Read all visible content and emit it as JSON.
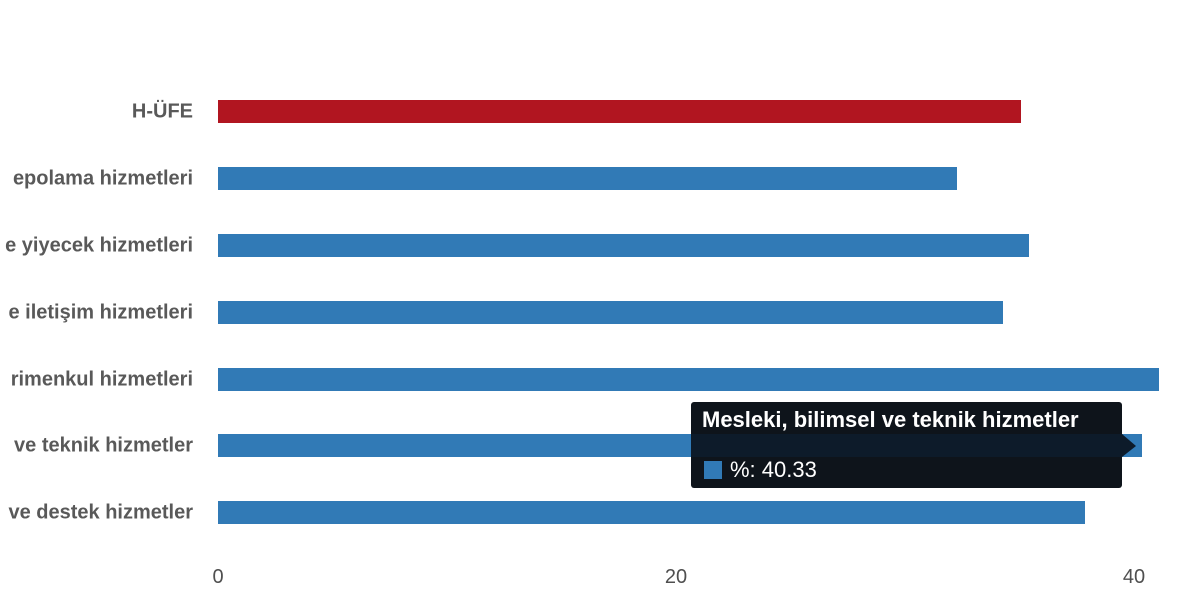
{
  "colors": {
    "background": "#ffffff",
    "bar_blue": "#317ab6",
    "bar_red": "#b11520",
    "category_label_gray": "#595959",
    "axis_label_gray": "#4f4f4f",
    "tooltip_background": "#0a0f16",
    "tooltip_bar_strip": "#0d1b2a",
    "tooltip_text": "#ffffff"
  },
  "chart_data": {
    "type": "bar",
    "orientation": "horizontal",
    "title": "",
    "xlabel": "",
    "ylabel": "",
    "grid": false,
    "legend": false,
    "categories": [
      "H-ÜFE",
      "epolama hizmetleri",
      "e yiyecek hizmetleri",
      "e iletişim hizmetleri",
      "rimenkul hizmetleri",
      "ve teknik hizmetler",
      "ve destek hizmetler"
    ],
    "values": [
      35.06,
      32.27,
      35.41,
      34.28,
      41.09,
      40.33,
      37.86
    ],
    "bar_colors": [
      "#b11520",
      "#317ab6",
      "#317ab6",
      "#317ab6",
      "#317ab6",
      "#317ab6",
      "#317ab6"
    ],
    "xticks": [
      "0",
      "20",
      "40"
    ],
    "xtick_values": [
      0,
      20,
      40
    ],
    "xlim": [
      0,
      42.9
    ]
  },
  "tooltip": {
    "title": "Mesleki, bilimsel ve teknik hizmetler",
    "value_label": "%: 40.33",
    "marker_color": "#317ab6",
    "target_category_index": 5
  }
}
